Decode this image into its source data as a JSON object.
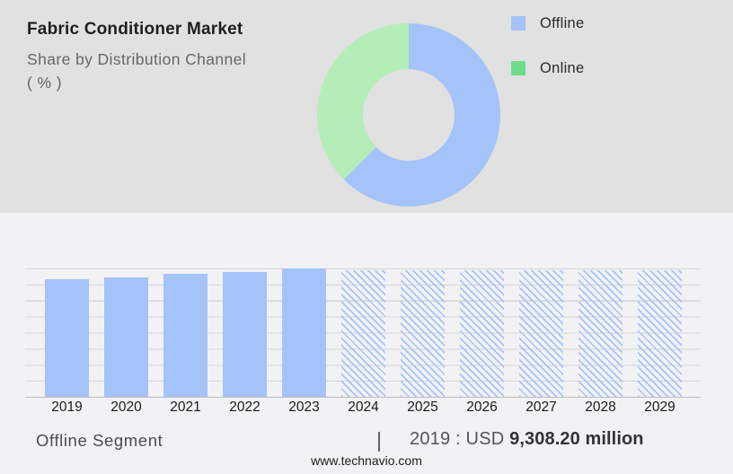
{
  "header": {
    "title": "Fabric Conditioner Market",
    "subtitle": "Share by Distribution Channel",
    "unit": "( % )"
  },
  "legend": {
    "items": [
      {
        "label": "Offline",
        "color": "#a4c3f8"
      },
      {
        "label": "Online",
        "color": "#6edc8b"
      }
    ]
  },
  "colors": {
    "offline_blue": "#a4c3f8",
    "online_green_legend": "#6edc8b",
    "online_green_donut": "#b4edb8",
    "top_bg": "#e1e1e1",
    "bottom_bg": "#f2f2f4",
    "gridline": "#d5d5d8",
    "axis": "#bdbdc0"
  },
  "chart_data": [
    {
      "type": "pie",
      "donut": true,
      "title": "Fabric Conditioner Market — Share by Distribution Channel ( % )",
      "labels": [
        "Offline",
        "Online"
      ],
      "values": [
        62.5,
        37.5
      ],
      "colors": [
        "#a4c3f8",
        "#b4edb8"
      ],
      "note": "percent values estimated from arc angles; no data labels shown; Offline slice starts at 12 o'clock clockwise",
      "legend_position": "right"
    },
    {
      "type": "bar",
      "title": "Offline Segment size by year",
      "categories": [
        "2019",
        "2020",
        "2021",
        "2022",
        "2023",
        "2024",
        "2025",
        "2026",
        "2027",
        "2028",
        "2029"
      ],
      "series": [
        {
          "name": "Offline segment",
          "values": [
            91.6,
            93.0,
            95.8,
            97.2,
            100,
            98.6,
            98.6,
            98.6,
            98.6,
            98.6,
            98.6
          ]
        }
      ],
      "hatched": [
        false,
        false,
        false,
        false,
        false,
        true,
        true,
        true,
        true,
        true,
        true
      ],
      "value_unit": "relative bar height, 2023 = 100 (no y-axis labels shown)",
      "historical_years": [
        "2019",
        "2020",
        "2021",
        "2022",
        "2023"
      ],
      "forecast_years": [
        "2024",
        "2025",
        "2026",
        "2027",
        "2028",
        "2029"
      ],
      "grid": true,
      "annotation": "2019 : USD 9,308.20 million"
    }
  ],
  "footer": {
    "segment_label": "Offline Segment",
    "separator": "|",
    "value_prefix": "2019 : USD",
    "value_bold": "9,308.20 million",
    "website": "www.technavio.com"
  }
}
